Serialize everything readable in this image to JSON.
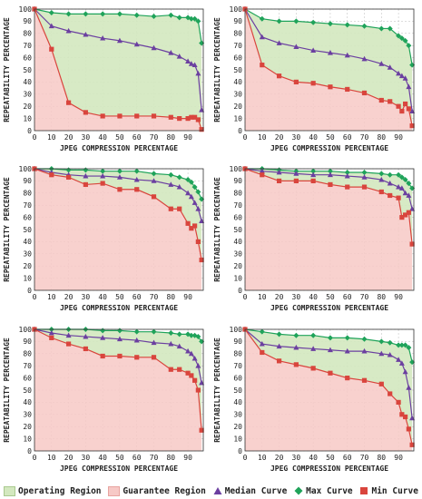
{
  "colors": {
    "operating": "#d3e8bf",
    "guarantee": "#f7c9c6",
    "median": "#6b3fa0",
    "max": "#1fa35a",
    "min": "#d9453d",
    "grid": "#bbbbbb"
  },
  "legend": {
    "operating": "Operating Region",
    "guarantee": "Guarantee Region",
    "median": "Median Curve",
    "max": "Max Curve",
    "min": "Min Curve"
  },
  "chart_data": [
    {
      "type": "line",
      "xlabel": "JPEG COMPRESSION PERCENTAGE",
      "ylabel": "REPEATABILITY PERCENTAGE",
      "xlim": [
        0,
        99
      ],
      "ylim": [
        0,
        100
      ],
      "xticks": [
        0,
        10,
        20,
        30,
        40,
        50,
        60,
        70,
        80,
        90
      ],
      "yticks": [
        0,
        10,
        20,
        30,
        40,
        50,
        60,
        70,
        80,
        90,
        100
      ],
      "x": [
        0,
        10,
        20,
        30,
        40,
        50,
        60,
        70,
        80,
        85,
        90,
        92,
        94,
        96,
        98
      ],
      "series": [
        {
          "name": "Max Curve",
          "values": [
            100,
            97,
            96,
            96,
            96,
            96,
            95,
            94,
            95,
            93,
            93,
            92,
            92,
            90,
            72
          ]
        },
        {
          "name": "Median Curve",
          "values": [
            100,
            86,
            82,
            79,
            76,
            74,
            71,
            68,
            64,
            61,
            57,
            55,
            54,
            47,
            17
          ]
        },
        {
          "name": "Min Curve",
          "values": [
            100,
            67,
            23,
            15,
            12,
            12,
            12,
            12,
            11,
            10,
            10,
            11,
            11,
            9,
            1
          ]
        }
      ]
    },
    {
      "type": "line",
      "xlabel": "JPEG COMPRESSION PERCENTAGE",
      "ylabel": "REPEATABILITY PERCENTAGE",
      "xlim": [
        0,
        99
      ],
      "ylim": [
        0,
        100
      ],
      "xticks": [
        0,
        10,
        20,
        30,
        40,
        50,
        60,
        70,
        80,
        90
      ],
      "yticks": [
        0,
        10,
        20,
        30,
        40,
        50,
        60,
        70,
        80,
        90,
        100
      ],
      "x": [
        0,
        10,
        20,
        30,
        40,
        50,
        60,
        70,
        80,
        85,
        90,
        92,
        94,
        96,
        98
      ],
      "series": [
        {
          "name": "Max Curve",
          "values": [
            100,
            92,
            90,
            90,
            89,
            88,
            87,
            86,
            84,
            84,
            78,
            76,
            74,
            70,
            54
          ]
        },
        {
          "name": "Median Curve",
          "values": [
            100,
            77,
            72,
            69,
            66,
            64,
            62,
            59,
            55,
            52,
            47,
            45,
            43,
            36,
            16
          ]
        },
        {
          "name": "Min Curve",
          "values": [
            100,
            54,
            45,
            40,
            39,
            36,
            34,
            31,
            25,
            24,
            20,
            16,
            22,
            18,
            4
          ]
        }
      ]
    },
    {
      "type": "line",
      "xlabel": "JPEG COMPRESSION PERCENTAGE",
      "ylabel": "REPEATABILITY PERCENTAGE",
      "xlim": [
        0,
        99
      ],
      "ylim": [
        0,
        100
      ],
      "xticks": [
        0,
        10,
        20,
        30,
        40,
        50,
        60,
        70,
        80,
        90
      ],
      "yticks": [
        0,
        10,
        20,
        30,
        40,
        50,
        60,
        70,
        80,
        90,
        100
      ],
      "x": [
        0,
        10,
        20,
        30,
        40,
        50,
        60,
        70,
        80,
        85,
        90,
        92,
        94,
        96,
        98
      ],
      "series": [
        {
          "name": "Max Curve",
          "values": [
            100,
            100,
            99,
            99,
            98,
            98,
            98,
            96,
            95,
            93,
            91,
            89,
            85,
            81,
            75
          ]
        },
        {
          "name": "Median Curve",
          "values": [
            100,
            97,
            95,
            94,
            94,
            93,
            91,
            90,
            87,
            85,
            80,
            77,
            72,
            67,
            57
          ]
        },
        {
          "name": "Min Curve",
          "values": [
            100,
            95,
            93,
            87,
            88,
            83,
            83,
            77,
            67,
            67,
            55,
            51,
            53,
            40,
            25
          ]
        }
      ]
    },
    {
      "type": "line",
      "xlabel": "JPEG COMPRESSION PERCENTAGE",
      "ylabel": "REPEATABILITY PERCENTAGE",
      "xlim": [
        0,
        99
      ],
      "ylim": [
        0,
        100
      ],
      "xticks": [
        0,
        10,
        20,
        30,
        40,
        50,
        60,
        70,
        80,
        90
      ],
      "yticks": [
        0,
        10,
        20,
        30,
        40,
        50,
        60,
        70,
        80,
        90,
        100
      ],
      "x": [
        0,
        10,
        20,
        30,
        40,
        50,
        60,
        70,
        80,
        85,
        90,
        92,
        94,
        96,
        98
      ],
      "series": [
        {
          "name": "Max Curve",
          "values": [
            100,
            100,
            99,
            98,
            98,
            98,
            97,
            97,
            96,
            95,
            95,
            93,
            91,
            88,
            84
          ]
        },
        {
          "name": "Median Curve",
          "values": [
            100,
            98,
            97,
            96,
            95,
            95,
            94,
            93,
            91,
            88,
            85,
            84,
            80,
            78,
            67
          ]
        },
        {
          "name": "Min Curve",
          "values": [
            100,
            95,
            90,
            90,
            90,
            87,
            85,
            85,
            81,
            78,
            76,
            60,
            62,
            64,
            38
          ]
        }
      ]
    },
    {
      "type": "line",
      "xlabel": "JPEG COMPRESSION PERCENTAGE",
      "ylabel": "REPEATABILITY PERCENTAGE",
      "xlim": [
        0,
        99
      ],
      "ylim": [
        0,
        100
      ],
      "xticks": [
        0,
        10,
        20,
        30,
        40,
        50,
        60,
        70,
        80,
        90
      ],
      "yticks": [
        0,
        10,
        20,
        30,
        40,
        50,
        60,
        70,
        80,
        90,
        100
      ],
      "x": [
        0,
        10,
        20,
        30,
        40,
        50,
        60,
        70,
        80,
        85,
        90,
        92,
        94,
        96,
        98
      ],
      "series": [
        {
          "name": "Max Curve",
          "values": [
            100,
            100,
            100,
            100,
            99,
            99,
            98,
            98,
            97,
            96,
            96,
            95,
            95,
            94,
            90
          ]
        },
        {
          "name": "Median Curve",
          "values": [
            100,
            97,
            95,
            94,
            93,
            92,
            91,
            89,
            88,
            86,
            82,
            80,
            76,
            70,
            56
          ]
        },
        {
          "name": "Min Curve",
          "values": [
            100,
            93,
            88,
            84,
            78,
            78,
            77,
            77,
            67,
            67,
            64,
            62,
            58,
            50,
            17
          ]
        }
      ]
    },
    {
      "type": "line",
      "xlabel": "JPEG COMPRESSION PERCENTAGE",
      "ylabel": "REPEATABILITY PERCENTAGE",
      "xlim": [
        0,
        99
      ],
      "ylim": [
        0,
        100
      ],
      "xticks": [
        0,
        10,
        20,
        30,
        40,
        50,
        60,
        70,
        80,
        90
      ],
      "yticks": [
        0,
        10,
        20,
        30,
        40,
        50,
        60,
        70,
        80,
        90,
        100
      ],
      "x": [
        0,
        10,
        20,
        30,
        40,
        50,
        60,
        70,
        80,
        85,
        90,
        92,
        94,
        96,
        98
      ],
      "series": [
        {
          "name": "Max Curve",
          "values": [
            100,
            98,
            96,
            95,
            95,
            93,
            93,
            92,
            90,
            89,
            87,
            87,
            87,
            85,
            73
          ]
        },
        {
          "name": "Median Curve",
          "values": [
            100,
            88,
            86,
            85,
            84,
            83,
            82,
            82,
            80,
            79,
            75,
            72,
            65,
            52,
            27
          ]
        },
        {
          "name": "Min Curve",
          "values": [
            100,
            81,
            74,
            71,
            68,
            64,
            60,
            58,
            55,
            47,
            40,
            30,
            28,
            18,
            5
          ]
        }
      ]
    }
  ]
}
